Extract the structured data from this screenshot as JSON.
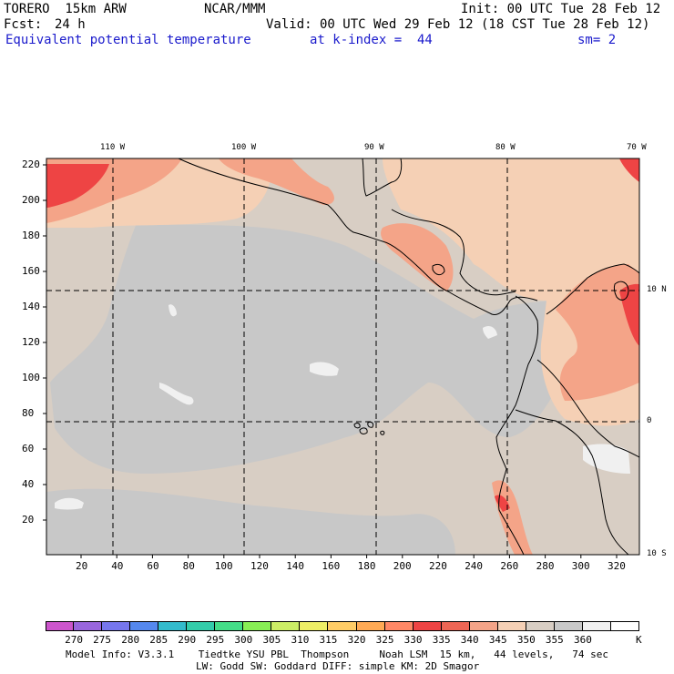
{
  "header": {
    "model": "TORERO  15km ARW",
    "org": "NCAR/MMM",
    "init": "Init: 00 UTC Tue 28 Feb 12",
    "fcst_label": "Fcst:",
    "fcst_value": "24 h",
    "valid": "Valid: 00 UTC Wed 29 Feb 12 (18 CST Tue 28 Feb 12)",
    "field": "Equivalent potential temperature",
    "level": "at k-index =  44",
    "smoothing": "sm= 2"
  },
  "axes": {
    "lon_labels": [
      "110 W",
      "100 W",
      "90 W",
      "80 W",
      "70 W"
    ],
    "lat_labels": [
      "10 N",
      "0",
      "10 S"
    ],
    "y_ticks": [
      "220",
      "200",
      "180",
      "160",
      "140",
      "120",
      "100",
      "80",
      "60",
      "40",
      "20"
    ],
    "x_ticks": [
      "20",
      "40",
      "60",
      "80",
      "100",
      "120",
      "140",
      "160",
      "180",
      "200",
      "220",
      "240",
      "260",
      "280",
      "300",
      "320"
    ]
  },
  "colorbar": {
    "unit": "K",
    "labels": [
      "270",
      "275",
      "280",
      "285",
      "290",
      "295",
      "300",
      "305",
      "310",
      "315",
      "320",
      "325",
      "330",
      "335",
      "340",
      "345",
      "350",
      "355",
      "360"
    ],
    "colors": [
      "#cc55cc",
      "#9966dd",
      "#7777ee",
      "#5588ee",
      "#33bbcc",
      "#33ccaa",
      "#44dd88",
      "#88ee55",
      "#ccee66",
      "#eeee66",
      "#ffcc66",
      "#ffaa55",
      "#ff8866",
      "#ee4444",
      "#ee6655",
      "#f4a488",
      "#f5d0b5",
      "#d8cec4",
      "#c8c8c8",
      "#f0f0f0",
      "#ffffff"
    ]
  },
  "footer": {
    "line1": "Model Info: V3.3.1    Tiedtke YSU PBL  Thompson     Noah LSM  15 km,   44 levels,   74 sec",
    "line2": "LW: Godd SW: Goddard DIFF: simple KM: 2D Smagor"
  }
}
